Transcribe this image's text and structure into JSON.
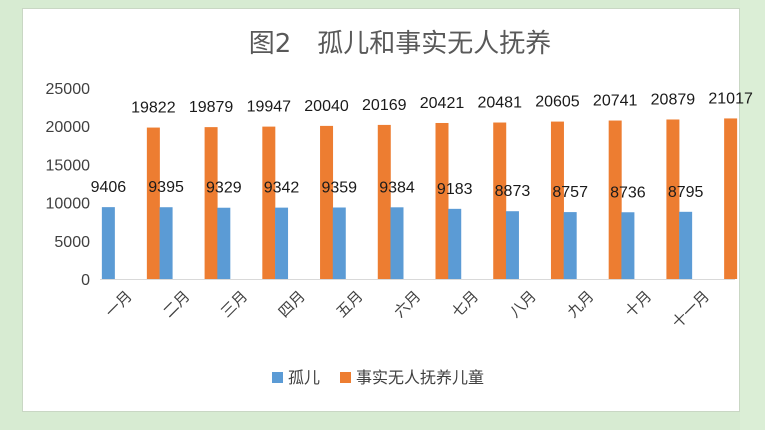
{
  "chart_data": {
    "type": "bar",
    "title": "图2　孤儿和事实无人抚养",
    "categories": [
      "一月",
      "二月",
      "三月",
      "四月",
      "五月",
      "六月",
      "七月",
      "八月",
      "九月",
      "十月",
      "十一月"
    ],
    "series": [
      {
        "name": "孤儿",
        "color": "#5b9bd5",
        "values": [
          9406,
          9395,
          9329,
          9342,
          9359,
          9384,
          9183,
          8873,
          8757,
          8736,
          8795
        ]
      },
      {
        "name": "事实无人抚养儿童",
        "color": "#ed7d31",
        "values": [
          19822,
          19879,
          19947,
          20040,
          20169,
          20421,
          20481,
          20605,
          20741,
          20879,
          21017
        ]
      }
    ],
    "ylim": [
      0,
      25000
    ],
    "yticks": [
      0,
      5000,
      10000,
      15000,
      20000,
      25000
    ],
    "grid": false,
    "legend_position": "bottom"
  }
}
